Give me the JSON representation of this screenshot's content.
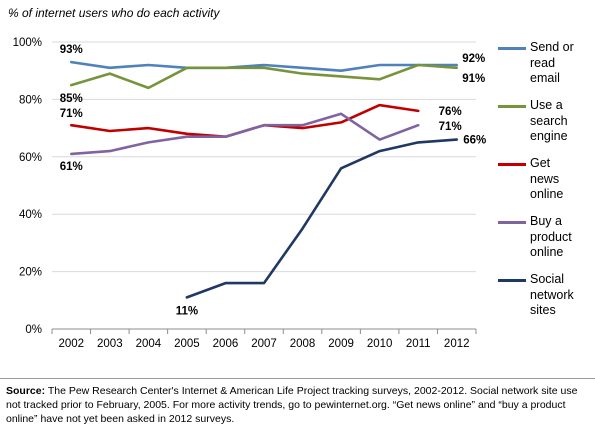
{
  "chart_data": {
    "type": "line",
    "title": "",
    "subtitle": "% of internet users who do each activity",
    "xlabel": "",
    "ylabel": "",
    "ylim": [
      0,
      100
    ],
    "yticks": [
      "0%",
      "20%",
      "40%",
      "60%",
      "80%",
      "100%"
    ],
    "grid": true,
    "legend_position": "right",
    "categories": [
      "2002",
      "2003",
      "2004",
      "2005",
      "2006",
      "2007",
      "2008",
      "2009",
      "2010",
      "2011",
      "2012"
    ],
    "series": [
      {
        "name": "Send or read email",
        "legend_lines": [
          "Send or",
          "read",
          "email"
        ],
        "color": "#4f81bd",
        "values": [
          93,
          91,
          92,
          91,
          91,
          92,
          91,
          90,
          92,
          92,
          92
        ],
        "labels": [
          {
            "index": 0,
            "text": "93%"
          },
          {
            "index": 10,
            "text": "92%"
          }
        ]
      },
      {
        "name": "Use a search engine",
        "legend_lines": [
          "Use a",
          "search",
          "engine"
        ],
        "color": "#77933c",
        "values": [
          85,
          89,
          84,
          91,
          91,
          91,
          89,
          88,
          87,
          92,
          91
        ],
        "labels": [
          {
            "index": 0,
            "text": "85%"
          },
          {
            "index": 10,
            "text": "91%"
          }
        ]
      },
      {
        "name": "Get news online",
        "legend_lines": [
          "Get",
          "news",
          "online"
        ],
        "color": "#c00000",
        "values": [
          71,
          69,
          70,
          68,
          67,
          71,
          70,
          72,
          78,
          76,
          null
        ],
        "labels": [
          {
            "index": 0,
            "text": "71%"
          },
          {
            "index": 9,
            "text": "76%"
          }
        ]
      },
      {
        "name": "Buy a product online",
        "legend_lines": [
          "Buy a",
          "product",
          "online"
        ],
        "color": "#8064a2",
        "values": [
          61,
          62,
          65,
          67,
          67,
          71,
          71,
          75,
          66,
          71,
          null
        ],
        "labels": [
          {
            "index": 0,
            "text": "61%"
          },
          {
            "index": 9,
            "text": "71%"
          }
        ]
      },
      {
        "name": "Social network sites",
        "legend_lines": [
          "Social",
          "network",
          "sites"
        ],
        "color": "#1f3864",
        "values": [
          null,
          null,
          null,
          11,
          16,
          16,
          35,
          56,
          62,
          65,
          66
        ],
        "labels": [
          {
            "index": 3,
            "text": "11%"
          },
          {
            "index": 10,
            "text": "66%"
          }
        ]
      }
    ]
  },
  "footnote": {
    "source_label": "Source:",
    "text": " The Pew Research Center's Internet & American Life Project tracking surveys, 2002-2012. Social network site use not tracked prior to February, 2005. For more activity trends, go to pewinternet.org.  “Get news online” and “buy a product online” have not yet been asked in 2012 surveys."
  }
}
